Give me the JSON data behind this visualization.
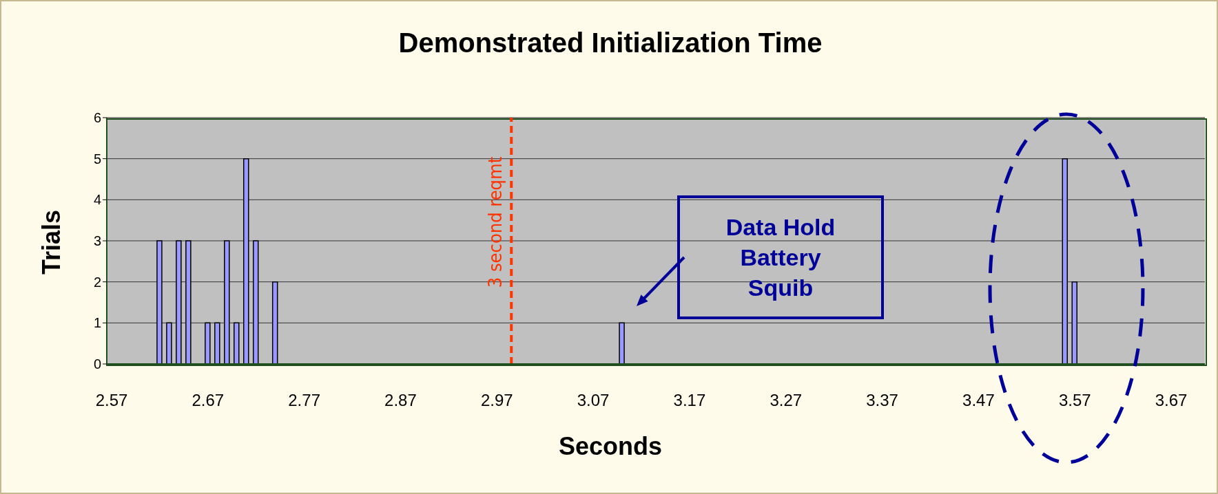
{
  "chart_data": {
    "type": "bar",
    "title": "Demonstrated Initialization Time",
    "xlabel": "Seconds",
    "ylabel": "Trials",
    "x": [
      2.62,
      2.63,
      2.64,
      2.65,
      2.67,
      2.68,
      2.69,
      2.7,
      2.71,
      2.72,
      2.74,
      3.1,
      3.56,
      3.57
    ],
    "values": [
      3,
      1,
      3,
      3,
      1,
      1,
      3,
      1,
      5,
      3,
      2,
      1,
      5,
      2
    ],
    "color": "#9999ff",
    "xlim": [
      2.565,
      3.705
    ],
    "xticks": [
      2.57,
      2.67,
      2.77,
      2.87,
      2.97,
      3.07,
      3.17,
      3.27,
      3.37,
      3.47,
      3.57,
      3.67
    ],
    "ylim": [
      0,
      6
    ],
    "yticks": [
      0,
      1,
      2,
      3,
      4,
      5,
      6
    ],
    "grid": "y",
    "ref_lines": [
      {
        "axis": "x",
        "value": 2.985,
        "label": "3 second reqmt",
        "color": "#ff3300",
        "line_style": "dashed"
      }
    ],
    "annotations": [
      "Data Hold Battery Squib"
    ]
  }
}
